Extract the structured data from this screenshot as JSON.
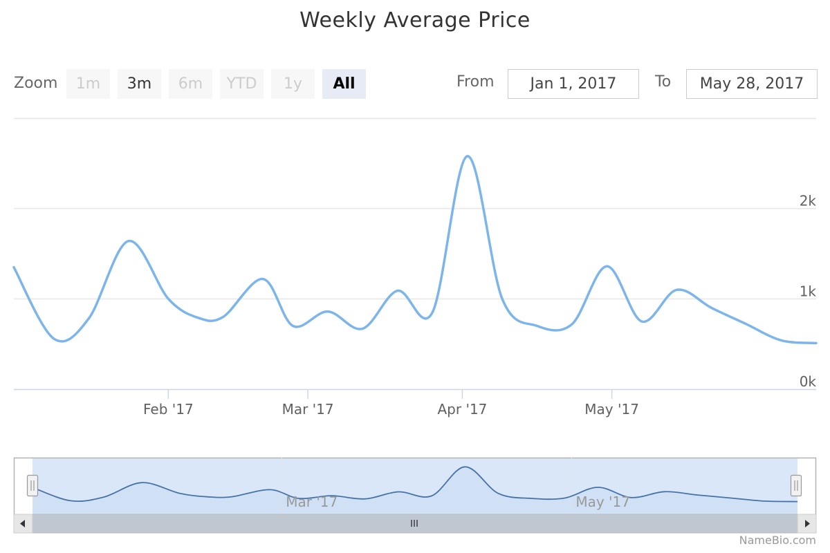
{
  "chart_data": {
    "type": "line",
    "title": "Weekly Average Price",
    "series": [
      {
        "values": [
          [
            "2017-01-01",
            1350
          ],
          [
            "2017-01-09",
            560
          ],
          [
            "2017-01-16",
            780
          ],
          [
            "2017-01-24",
            1640
          ],
          [
            "2017-02-01",
            1000
          ],
          [
            "2017-02-07",
            790
          ],
          [
            "2017-02-12",
            800
          ],
          [
            "2017-02-20",
            1220
          ],
          [
            "2017-02-26",
            700
          ],
          [
            "2017-03-05",
            860
          ],
          [
            "2017-03-12",
            670
          ],
          [
            "2017-03-19",
            1090
          ],
          [
            "2017-03-26",
            850
          ],
          [
            "2017-04-02",
            2580
          ],
          [
            "2017-04-09",
            1000
          ],
          [
            "2017-04-16",
            700
          ],
          [
            "2017-04-23",
            720
          ],
          [
            "2017-04-30",
            1360
          ],
          [
            "2017-05-07",
            750
          ],
          [
            "2017-05-14",
            1100
          ],
          [
            "2017-05-21",
            900
          ],
          [
            "2017-05-28",
            720
          ],
          [
            "2017-06-04",
            540
          ],
          [
            "2017-06-11",
            510
          ]
        ]
      }
    ],
    "x_ticks": [
      "Feb '17",
      "Mar '17",
      "Apr '17",
      "May '17"
    ],
    "y_ticks": [
      "0k",
      "1k",
      "2k"
    ],
    "ylim": [
      0,
      3000
    ],
    "grid": true,
    "color": "#7cb5ec",
    "navigator": {
      "x_ticks": [
        "Mar '17",
        "May '17"
      ]
    }
  },
  "zoom": {
    "label": "Zoom",
    "buttons": [
      "1m",
      "3m",
      "6m",
      "YTD",
      "1y",
      "All"
    ],
    "enabled": [
      false,
      true,
      false,
      false,
      false,
      true
    ],
    "active_index": 5
  },
  "range": {
    "from_label": "From",
    "from_value": "Jan 1, 2017",
    "to_label": "To",
    "to_value": "May 28, 2017"
  },
  "credits": "NameBio.com"
}
